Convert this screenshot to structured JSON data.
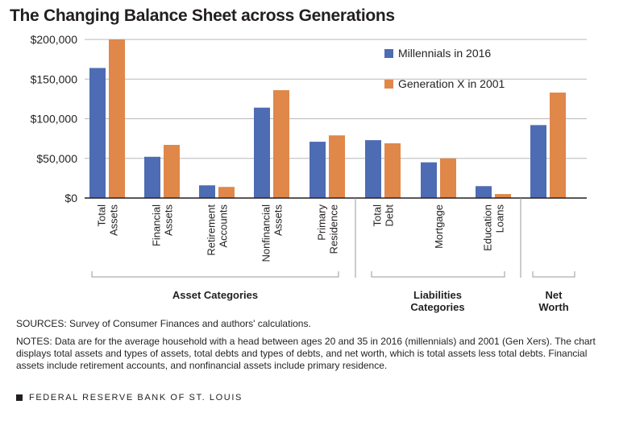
{
  "title": "The Changing Balance Sheet across Generations",
  "chart_data": {
    "type": "bar",
    "title": "The Changing Balance Sheet across Generations",
    "categories": [
      [
        "Total",
        "Assets"
      ],
      [
        "Financial",
        "Assets"
      ],
      [
        "Retirement",
        "Accounts"
      ],
      [
        "Nonfinancial",
        "Assets"
      ],
      [
        "Primary",
        "Residence"
      ],
      [
        "Total",
        "Debt"
      ],
      [
        "Mortgage"
      ],
      [
        "Education",
        "Loans"
      ],
      []
    ],
    "series": [
      {
        "name": "Millennials in 2016",
        "color": "#4e6cb3",
        "values": [
          164000,
          52000,
          16000,
          114000,
          71000,
          73000,
          45000,
          15000,
          92000
        ]
      },
      {
        "name": "Generation X in 2001",
        "color": "#e0874a",
        "values": [
          200000,
          67000,
          14000,
          136000,
          79000,
          69000,
          50000,
          5000,
          133000
        ]
      }
    ],
    "ylim": [
      0,
      200000
    ],
    "yticks": [
      0,
      50000,
      100000,
      150000,
      200000
    ],
    "ytick_labels": [
      "$0",
      "$50,000",
      "$100,000",
      "$150,000",
      "$200,000"
    ],
    "grid": true,
    "legend_position": "top-right",
    "groups": [
      {
        "label": [
          "Asset Categories"
        ]
      },
      {
        "label": [
          "Liabilities",
          "Categories"
        ]
      },
      {
        "label": [
          "Net",
          "Worth"
        ]
      }
    ]
  },
  "sources": "SOURCES: Survey of Consumer Finances and authors' calculations.",
  "notes": "NOTES: Data are for the average household with a head between ages 20 and 35 in 2016 (millennials) and 2001 (Gen Xers). The chart displays total assets and types of assets, total debts and types of debts, and net worth, which is total assets less total debts. Financial assets include retirement accounts, and nonfinancial assets include primary residence.",
  "footer": "FEDERAL RESERVE BANK OF ST. LOUIS"
}
